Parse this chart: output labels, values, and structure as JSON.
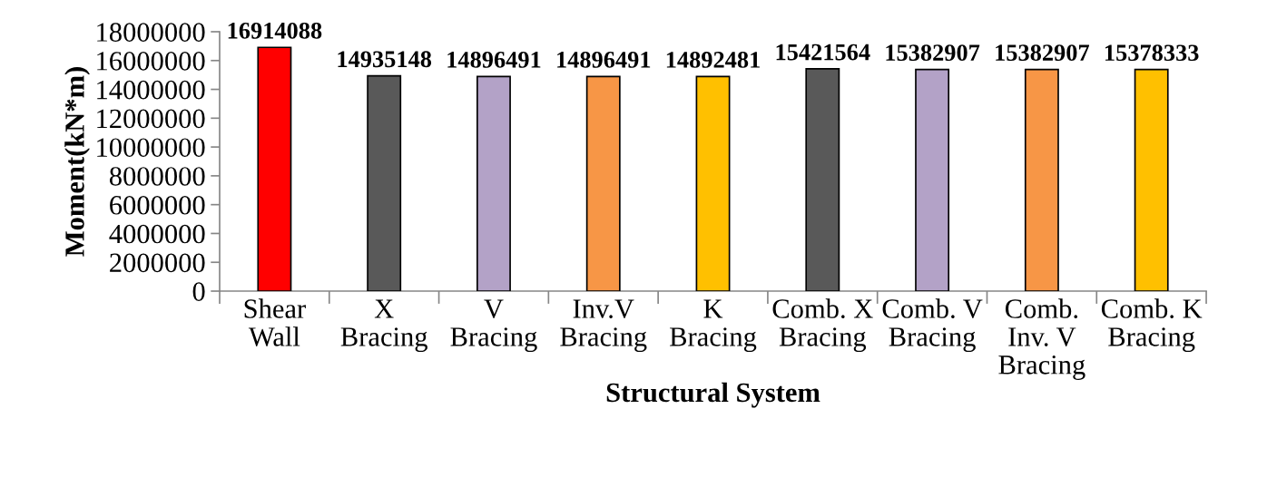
{
  "chart_data": {
    "type": "bar",
    "xlabel": "Structural System",
    "ylabel": "Moment(kN*m)",
    "categories": [
      "Shear\nWall",
      "X\nBracing",
      "V\nBracing",
      "Inv.V\nBracing",
      "K\nBracing",
      "Comb. X\nBracing",
      "Comb. V\nBracing",
      "Comb.\nInv. V\nBracing",
      "Comb. K\nBracing"
    ],
    "values": [
      16914088,
      14935148,
      14896491,
      14896491,
      14892481,
      15421564,
      15382907,
      15382907,
      15378333
    ],
    "colors": [
      "#ff0000",
      "#595959",
      "#b3a2c7",
      "#f79646",
      "#ffc000",
      "#595959",
      "#b3a2c7",
      "#f79646",
      "#ffc000"
    ],
    "ylim": [
      0,
      18000000
    ],
    "yticks": [
      0,
      2000000,
      4000000,
      6000000,
      8000000,
      10000000,
      12000000,
      14000000,
      16000000,
      18000000
    ],
    "data_labels": true
  }
}
